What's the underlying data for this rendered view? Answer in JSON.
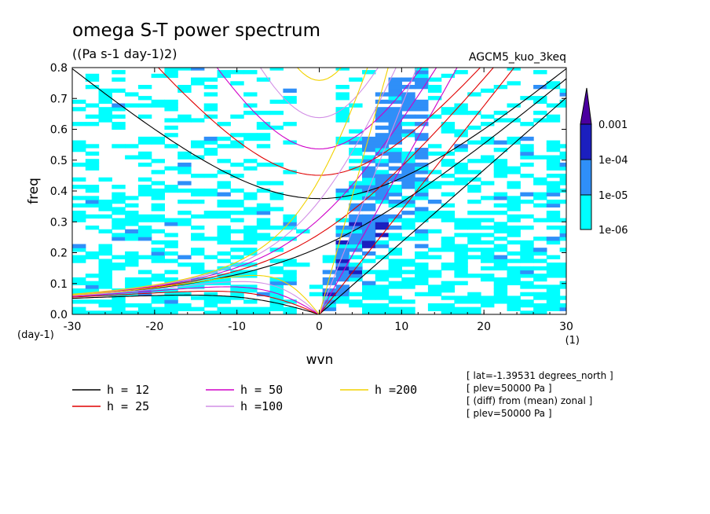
{
  "chart_data": {
    "type": "heatmap",
    "title": "omega S-T power spectrum",
    "subtitle": "((Pa s-1 day-1)2)",
    "model": "AGCM5_kuo_3keq",
    "xlabel": "wvn",
    "ylabel": "freq",
    "xunit": "(1)",
    "yunit": "(day-1)",
    "xlim": [
      -30,
      30
    ],
    "ylim": [
      0.0,
      0.8
    ],
    "xticks": [
      "-30",
      "-20",
      "-10",
      "0",
      "10",
      "20",
      "30"
    ],
    "yticks": [
      "0.0",
      "0.1",
      "0.2",
      "0.3",
      "0.4",
      "0.5",
      "0.6",
      "0.7",
      "0.8"
    ],
    "colorbar": {
      "labels": [
        "1e-06",
        "1e-05",
        "1e-04",
        "0.001"
      ],
      "colors": [
        "#00ffff",
        "#2f8ff8",
        "#1b1fbf",
        "#4b00a0"
      ]
    },
    "dispersion_curves": [
      {
        "label": "h = 12",
        "h": 12,
        "color": "#000000"
      },
      {
        "label": "h = 25",
        "h": 25,
        "color": "#e00000"
      },
      {
        "label": "h = 50",
        "h": 50,
        "color": "#d000c8"
      },
      {
        "label": "h =100",
        "h": 100,
        "color": "#d28fe6"
      },
      {
        "label": "h =200",
        "h": 200,
        "color": "#f2d200"
      }
    ],
    "annotations": [
      "[ lat=-1.39531 degrees_north ]",
      "[ plev=50000 Pa ]",
      "[ (diff) from (mean) zonal ]",
      "[ plev=50000 Pa ]"
    ]
  }
}
